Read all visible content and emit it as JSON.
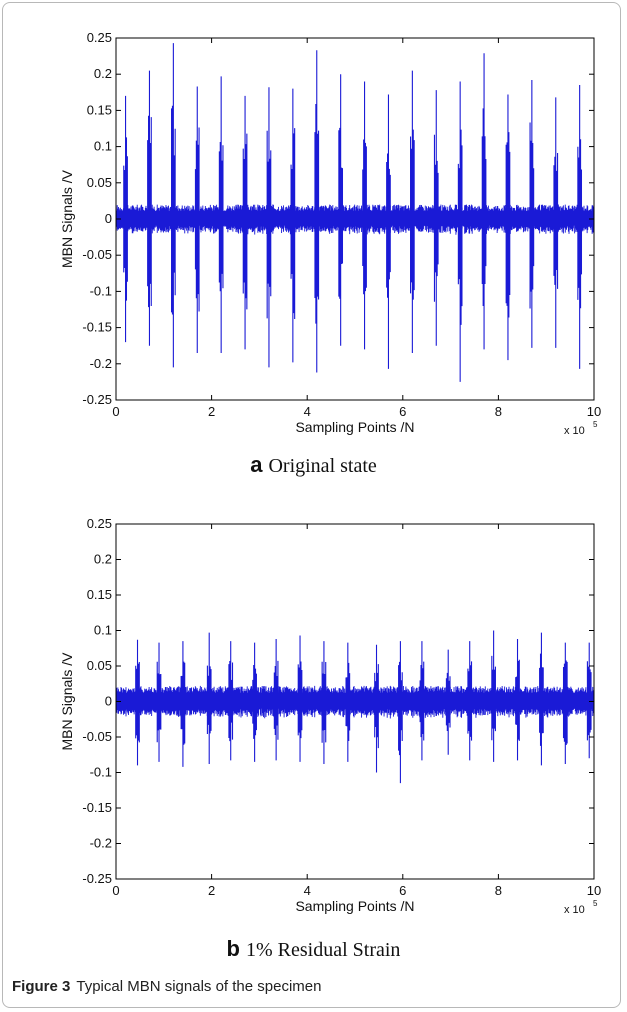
{
  "chart_data": [
    {
      "type": "line",
      "panel_letter": "a",
      "caption": "Original state",
      "xlabel": "Sampling Points /N",
      "ylabel": "MBN Signals /V",
      "x_multiplier": "x 10",
      "x_multiplier_exp": "5",
      "xlim": [
        0,
        10
      ],
      "ylim": [
        -0.25,
        0.25
      ],
      "xticks": [
        0,
        2,
        4,
        6,
        8,
        10
      ],
      "yticks": [
        0.25,
        0.2,
        0.15,
        0.1,
        0.05,
        0,
        -0.05,
        -0.1,
        -0.15,
        -0.2,
        -0.25
      ],
      "ytick_labels": [
        "0.25",
        "0.2",
        "0.15",
        "0.1",
        "0.05",
        "0",
        "-0.05",
        "-0.1",
        "-0.15",
        "-0.2",
        "-0.25"
      ],
      "noise_band": 0.02,
      "bursts": [
        {
          "x": 0.2,
          "peak": 0.17,
          "trough": -0.17
        },
        {
          "x": 0.7,
          "peak": 0.205,
          "trough": -0.175
        },
        {
          "x": 1.2,
          "peak": 0.243,
          "trough": -0.205
        },
        {
          "x": 1.7,
          "peak": 0.183,
          "trough": -0.185
        },
        {
          "x": 2.2,
          "peak": 0.197,
          "trough": -0.185
        },
        {
          "x": 2.7,
          "peak": 0.17,
          "trough": -0.18
        },
        {
          "x": 3.2,
          "peak": 0.182,
          "trough": -0.205
        },
        {
          "x": 3.7,
          "peak": 0.18,
          "trough": -0.198
        },
        {
          "x": 4.2,
          "peak": 0.233,
          "trough": -0.212
        },
        {
          "x": 4.7,
          "peak": 0.2,
          "trough": -0.175
        },
        {
          "x": 5.2,
          "peak": 0.19,
          "trough": -0.18
        },
        {
          "x": 5.7,
          "peak": 0.172,
          "trough": -0.207
        },
        {
          "x": 6.2,
          "peak": 0.205,
          "trough": -0.185
        },
        {
          "x": 6.7,
          "peak": 0.178,
          "trough": -0.175
        },
        {
          "x": 7.2,
          "peak": 0.19,
          "trough": -0.225
        },
        {
          "x": 7.7,
          "peak": 0.229,
          "trough": -0.18
        },
        {
          "x": 8.2,
          "peak": 0.172,
          "trough": -0.195
        },
        {
          "x": 8.7,
          "peak": 0.192,
          "trough": -0.178
        },
        {
          "x": 9.2,
          "peak": 0.168,
          "trough": -0.178
        },
        {
          "x": 9.7,
          "peak": 0.185,
          "trough": -0.207
        }
      ]
    },
    {
      "type": "line",
      "panel_letter": "b",
      "caption": "1% Residual Strain",
      "xlabel": "Sampling Points /N",
      "ylabel": "MBN Signals /V",
      "x_multiplier": "x 10",
      "x_multiplier_exp": "5",
      "xlim": [
        0,
        10
      ],
      "ylim": [
        -0.25,
        0.25
      ],
      "xticks": [
        0,
        2,
        4,
        6,
        8,
        10
      ],
      "yticks": [
        0.25,
        0.2,
        0.15,
        0.1,
        0.05,
        0,
        -0.05,
        -0.1,
        -0.15,
        -0.2,
        -0.25
      ],
      "ytick_labels": [
        "0.25",
        "0.2",
        "0.15",
        "0.1",
        "0.05",
        "0",
        "-0.05",
        "-0.1",
        "-0.15",
        "-0.2",
        "-0.25"
      ],
      "noise_band": 0.022,
      "bursts": [
        {
          "x": 0.45,
          "peak": 0.087,
          "trough": -0.09
        },
        {
          "x": 0.9,
          "peak": 0.083,
          "trough": -0.085
        },
        {
          "x": 1.4,
          "peak": 0.085,
          "trough": -0.092
        },
        {
          "x": 1.95,
          "peak": 0.097,
          "trough": -0.088
        },
        {
          "x": 2.4,
          "peak": 0.085,
          "trough": -0.083
        },
        {
          "x": 2.9,
          "peak": 0.083,
          "trough": -0.085
        },
        {
          "x": 3.35,
          "peak": 0.088,
          "trough": -0.083
        },
        {
          "x": 3.85,
          "peak": 0.093,
          "trough": -0.085
        },
        {
          "x": 4.35,
          "peak": 0.085,
          "trough": -0.088
        },
        {
          "x": 4.85,
          "peak": 0.083,
          "trough": -0.085
        },
        {
          "x": 5.45,
          "peak": 0.08,
          "trough": -0.1
        },
        {
          "x": 5.95,
          "peak": 0.085,
          "trough": -0.115
        },
        {
          "x": 6.4,
          "peak": 0.085,
          "trough": -0.083
        },
        {
          "x": 6.95,
          "peak": 0.073,
          "trough": -0.075
        },
        {
          "x": 7.4,
          "peak": 0.085,
          "trough": -0.083
        },
        {
          "x": 7.9,
          "peak": 0.1,
          "trough": -0.085
        },
        {
          "x": 8.4,
          "peak": 0.088,
          "trough": -0.083
        },
        {
          "x": 8.9,
          "peak": 0.097,
          "trough": -0.09
        },
        {
          "x": 9.4,
          "peak": 0.083,
          "trough": -0.088
        },
        {
          "x": 9.9,
          "peak": 0.083,
          "trough": -0.08
        }
      ]
    }
  ],
  "figure": {
    "label": "Figure 3",
    "caption": "Typical MBN signals of the specimen"
  },
  "colors": {
    "signal": "#1a1ad6",
    "axis": "#000000"
  }
}
